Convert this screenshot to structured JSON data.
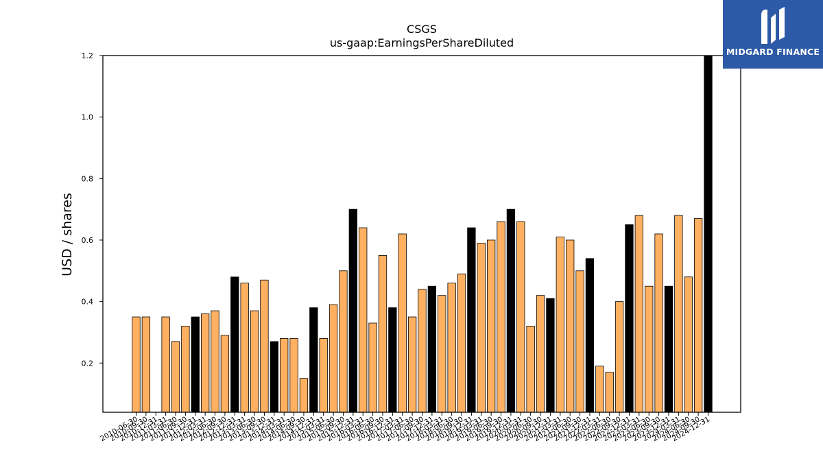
{
  "chart_data": {
    "type": "bar",
    "title": "CSGS",
    "subtitle": "us-gaap:EarningsPerShareDiluted",
    "xlabel": "",
    "ylabel": "USD / shares",
    "ylim": [
      0.04,
      1.2
    ],
    "yticks": [
      "0.2",
      "0.4",
      "0.6",
      "0.8",
      "1.0",
      "1.2"
    ],
    "grid": false,
    "colors": {
      "quarter": "#ffb061",
      "year_end": "#000000"
    },
    "categories": [
      "2010-06-30",
      "2010-09-30",
      "2010-12-31",
      "2011-03-31",
      "2011-06-30",
      "2011-09-30",
      "2011-12-31",
      "2012-03-31",
      "2012-06-30",
      "2012-09-30",
      "2012-12-31",
      "2013-03-31",
      "2013-06-30",
      "2013-09-30",
      "2013-12-31",
      "2014-03-31",
      "2014-06-30",
      "2014-09-30",
      "2014-12-31",
      "2015-03-31",
      "2015-06-30",
      "2015-09-30",
      "2015-12-31",
      "2016-03-31",
      "2016-06-30",
      "2016-09-30",
      "2016-12-31",
      "2017-03-31",
      "2017-06-30",
      "2017-09-30",
      "2017-12-31",
      "2018-03-31",
      "2018-06-30",
      "2018-09-30",
      "2018-12-31",
      "2019-03-31",
      "2019-06-30",
      "2019-09-30",
      "2019-12-31",
      "2020-03-31",
      "2020-06-30",
      "2020-09-30",
      "2020-12-31",
      "2021-03-31",
      "2021-06-30",
      "2021-09-30",
      "2021-12-31",
      "2022-03-31",
      "2022-06-30",
      "2022-09-30",
      "2022-12-31",
      "2023-03-31",
      "2023-06-30",
      "2023-09-30",
      "2023-12-31",
      "2024-03-31",
      "2024-06-30",
      "2024-09-30",
      "2024-12-31"
    ],
    "values": [
      0.35,
      0.35,
      null,
      0.35,
      0.27,
      0.32,
      0.35,
      0.36,
      0.37,
      0.29,
      0.48,
      0.46,
      0.37,
      0.47,
      0.27,
      0.28,
      0.28,
      0.15,
      0.38,
      0.28,
      0.39,
      0.5,
      0.7,
      0.64,
      0.33,
      0.55,
      0.38,
      0.62,
      0.35,
      0.44,
      0.45,
      0.42,
      0.46,
      0.49,
      0.64,
      0.59,
      0.6,
      0.66,
      0.7,
      0.66,
      0.32,
      0.42,
      0.41,
      0.61,
      0.6,
      0.5,
      0.54,
      0.19,
      0.17,
      0.4,
      0.65,
      0.68,
      0.45,
      0.62,
      0.45,
      0.68,
      0.48,
      0.67,
      1.2
    ],
    "year_end": [
      false,
      false,
      false,
      false,
      false,
      false,
      true,
      false,
      false,
      false,
      true,
      false,
      false,
      false,
      true,
      false,
      false,
      false,
      true,
      false,
      false,
      false,
      true,
      false,
      false,
      false,
      true,
      false,
      false,
      false,
      true,
      false,
      false,
      false,
      true,
      false,
      false,
      false,
      true,
      false,
      false,
      false,
      true,
      false,
      false,
      false,
      true,
      false,
      false,
      false,
      true,
      false,
      false,
      false,
      true,
      false,
      false,
      false,
      true
    ]
  },
  "logo": {
    "text": "MIDGARD FINANCE",
    "icon": "midgard-logo-icon",
    "background": "#2d5aa6"
  }
}
